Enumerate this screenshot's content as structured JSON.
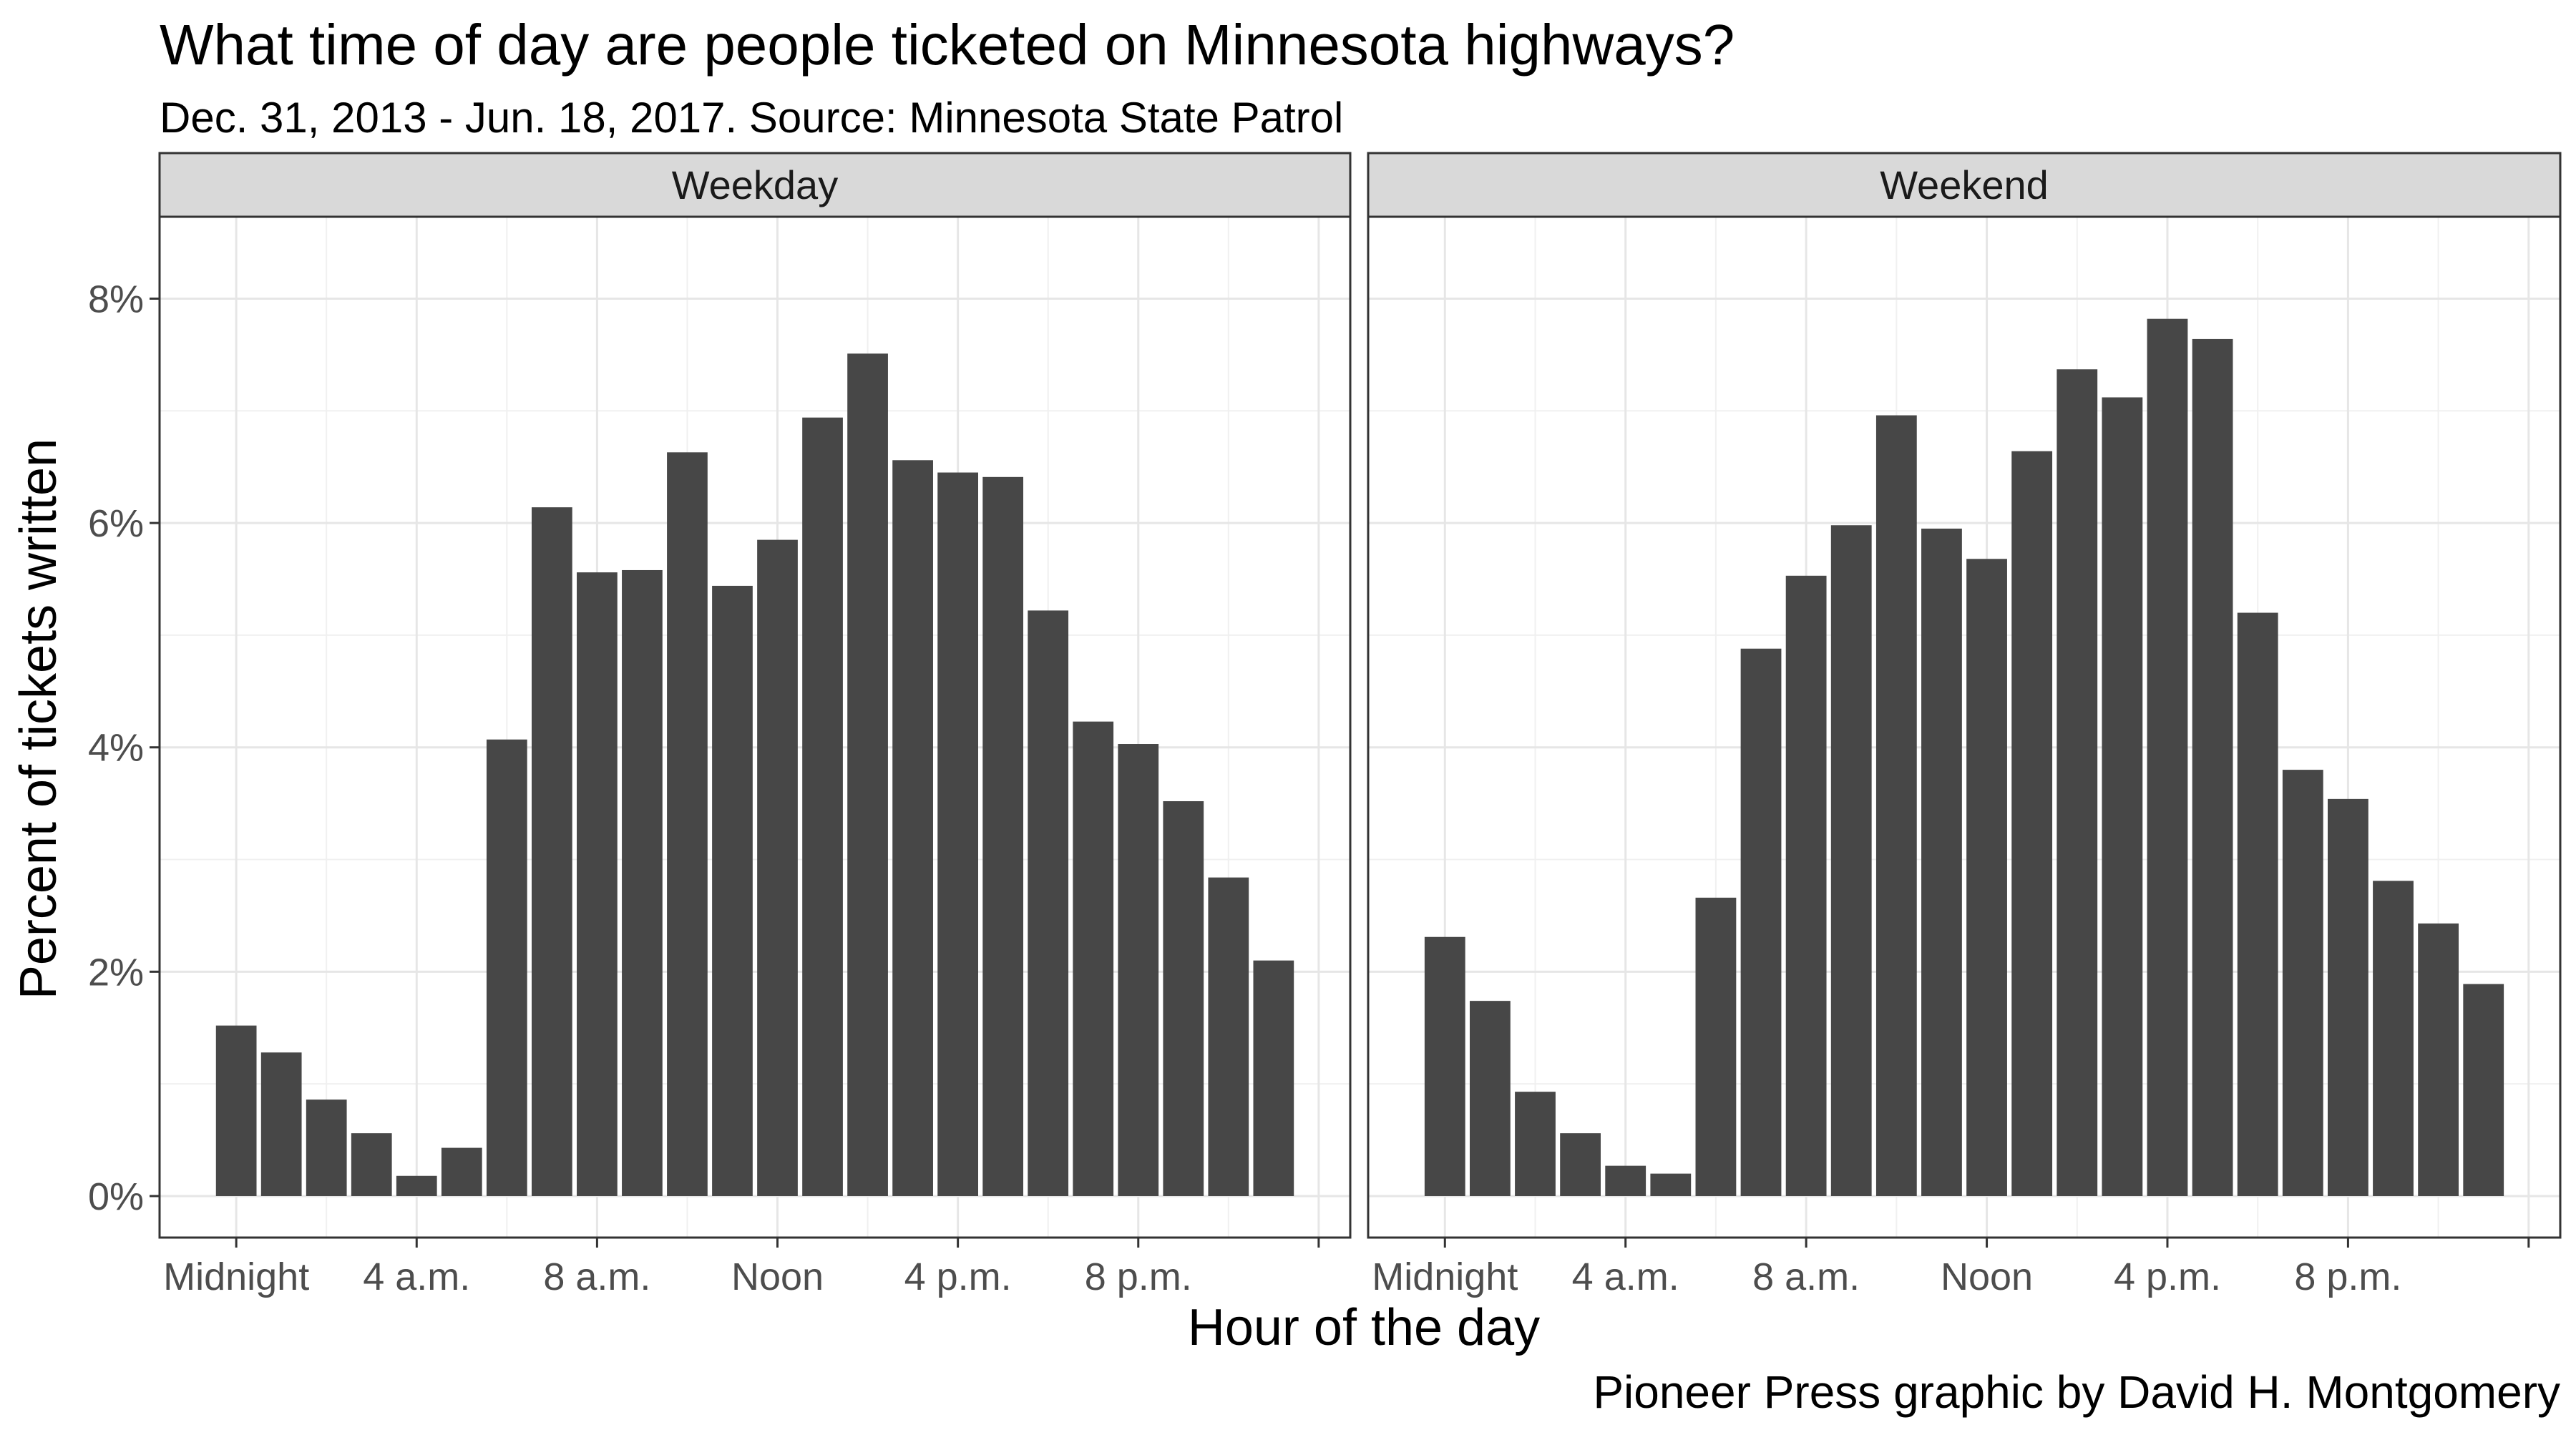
{
  "chart_data": {
    "type": "bar",
    "title": "What time of day are people ticketed on Minnesota highways?",
    "subtitle": "Dec. 31, 2013 - Jun. 18, 2017. Source: Minnesota State Patrol",
    "xlabel": "Hour of the day",
    "ylabel": "Percent of tickets written",
    "caption": "Pioneer Press graphic by David H. Montgomery",
    "x": [
      0,
      1,
      2,
      3,
      4,
      5,
      6,
      7,
      8,
      9,
      10,
      11,
      12,
      13,
      14,
      15,
      16,
      17,
      18,
      19,
      20,
      21,
      22,
      23
    ],
    "x_ticks": [
      {
        "x": 0,
        "label": "Midnight"
      },
      {
        "x": 4,
        "label": "4 a.m."
      },
      {
        "x": 8,
        "label": "8 a.m."
      },
      {
        "x": 12,
        "label": "Noon"
      },
      {
        "x": 16,
        "label": "4 p.m."
      },
      {
        "x": 20,
        "label": "8 p.m."
      },
      {
        "x": 24,
        "label": ""
      }
    ],
    "y_ticks": [
      {
        "y": 0,
        "label": "0%"
      },
      {
        "y": 2,
        "label": "2%"
      },
      {
        "y": 4,
        "label": "4%"
      },
      {
        "y": 6,
        "label": "6%"
      },
      {
        "y": 8,
        "label": "8%"
      }
    ],
    "ylim": [
      -0.37,
      8.73
    ],
    "xlim": [
      -1.7,
      24.7
    ],
    "grid": true,
    "bar_color": "#474747",
    "panels": [
      {
        "name": "Weekday",
        "values": [
          1.52,
          1.28,
          0.86,
          0.56,
          0.18,
          0.43,
          4.07,
          6.14,
          5.56,
          5.58,
          6.63,
          5.44,
          5.85,
          6.94,
          7.51,
          6.56,
          6.45,
          6.41,
          5.22,
          4.23,
          4.03,
          3.52,
          2.84,
          2.1
        ]
      },
      {
        "name": "Weekend",
        "values": [
          2.31,
          1.74,
          0.93,
          0.56,
          0.27,
          0.2,
          2.66,
          4.88,
          5.53,
          5.98,
          6.96,
          5.95,
          5.68,
          6.64,
          7.37,
          7.12,
          7.82,
          7.64,
          5.2,
          3.8,
          3.54,
          2.81,
          2.43,
          1.89
        ]
      }
    ]
  }
}
